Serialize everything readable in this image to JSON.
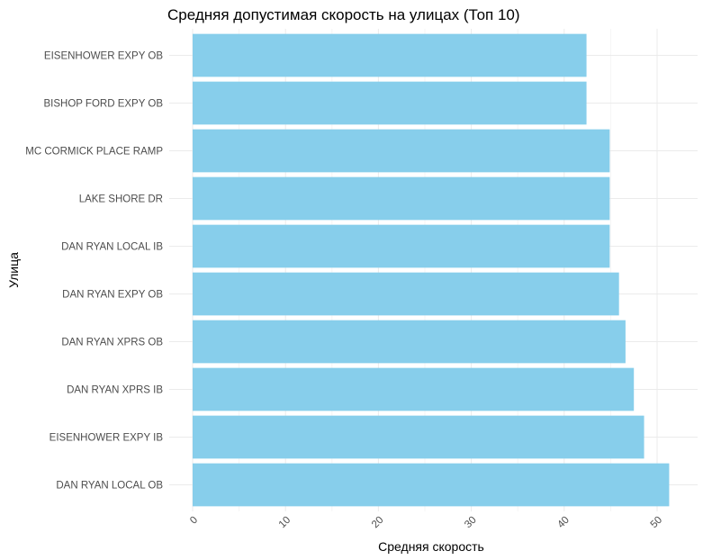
{
  "chart_data": {
    "type": "bar",
    "orientation": "horizontal",
    "title": "Средняя допустимая скорость на улицах (Топ 10)",
    "xlabel": "Средняя скорость",
    "ylabel": "Улица",
    "categories": [
      "DAN RYAN LOCAL OB",
      "EISENHOWER EXPY IB",
      "DAN RYAN XPRS IB",
      "DAN RYAN XPRS OB",
      "DAN RYAN EXPY OB",
      "DAN RYAN LOCAL IB",
      "LAKE SHORE  DR",
      "MC CORMICK PLACE RAMP",
      "BISHOP FORD EXPY OB",
      "EISENHOWER EXPY OB"
    ],
    "values": [
      51.3,
      48.6,
      47.5,
      46.6,
      45.9,
      44.9,
      44.9,
      44.9,
      42.4,
      42.4
    ],
    "xlim": [
      0,
      53
    ],
    "xticks": [
      "0",
      "10",
      "20",
      "30",
      "40",
      "50"
    ],
    "grid": true,
    "bar_color": "#87CEEB"
  }
}
